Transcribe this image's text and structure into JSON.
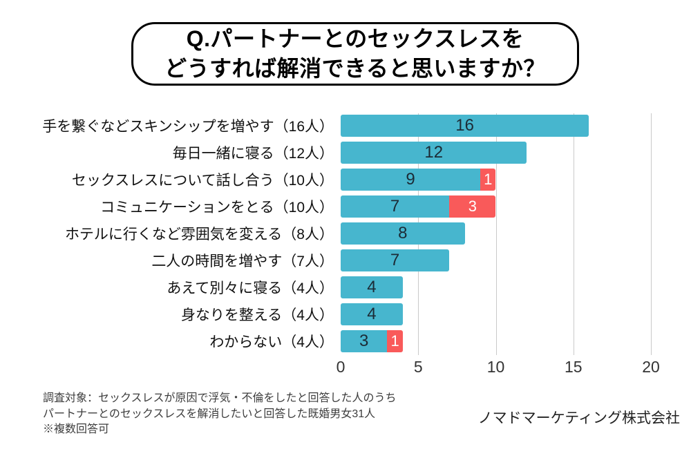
{
  "title": {
    "line1": "Q.パートナーとのセックスレスを",
    "line2": "どうすれば解消できると思いますか？"
  },
  "chart_data": {
    "type": "bar",
    "orientation": "horizontal",
    "stacked": true,
    "title": "Q.パートナーとのセックスレスをどうすれば解消できると思いますか？",
    "categories": [
      "手を繋ぐなどスキンシップを増やす（16人）",
      "毎日一緒に寝る（12人）",
      "セックスレスについて話し合う（10人）",
      "コミュニケーションをとる（10人）",
      "ホテルに行くなど雰囲気を変える（8人）",
      "二人の時間を増やす（7人）",
      "あえて別々に寝る（4人）",
      "身なりを整える（4人）",
      "わからない（4人）"
    ],
    "series": [
      {
        "name": "primary-segment",
        "color": "#47B6CE",
        "label_color": "#1c2b36",
        "values": [
          16,
          12,
          9,
          7,
          8,
          7,
          4,
          4,
          3
        ]
      },
      {
        "name": "highlight-segment",
        "color": "#F95A5A",
        "label_color": "#ffffff",
        "values": [
          0,
          0,
          1,
          3,
          0,
          0,
          0,
          0,
          1
        ]
      }
    ],
    "xticks": [
      0,
      5,
      10,
      15,
      20
    ],
    "xlim": [
      0,
      20
    ],
    "grid": true,
    "legend": false
  },
  "footer": {
    "lines": [
      "調査対象：セックスレスが原因で浮気・不倫をしたと回答した人のうち",
      "パートナーとのセックスレスを解消したいと回答した既婚男女31人",
      "※複数回答可"
    ],
    "company": "ノマドマーケティング株式会社"
  }
}
